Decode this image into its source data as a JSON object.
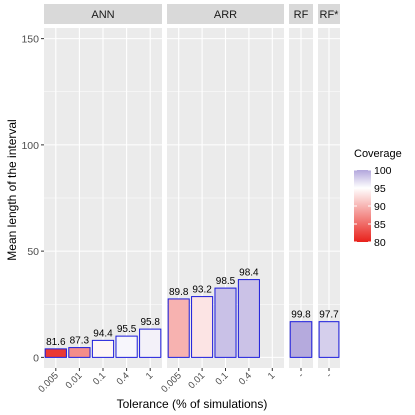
{
  "chart_data": {
    "type": "bar",
    "xlabel": "Tolerance (% of simulations)",
    "ylabel": "Mean length of the interval",
    "ylim": [
      -5,
      155
    ],
    "yticks": [
      0,
      50,
      100,
      150
    ],
    "grid": true,
    "legend": {
      "title": "Coverage",
      "placement": "right",
      "range": [
        80,
        100
      ],
      "ticks": [
        80,
        85,
        90,
        95,
        100
      ],
      "colors": {
        "low": "#e8211b",
        "mid": "#ffffff",
        "high": "#b2a6dc"
      },
      "midpoint": 95
    },
    "panels": [
      {
        "name": "ANN",
        "bars": [
          {
            "tolerance": "0.005",
            "value": 4.0,
            "coverage": 81.6,
            "label": "81.6"
          },
          {
            "tolerance": "0.01",
            "value": 4.6,
            "coverage": 87.3,
            "label": "87.3"
          },
          {
            "tolerance": "0.1",
            "value": 8.0,
            "coverage": 94.4,
            "label": "94.4"
          },
          {
            "tolerance": "0.4",
            "value": 10.0,
            "coverage": 95.5,
            "label": "95.5"
          },
          {
            "tolerance": "1",
            "value": 13.3,
            "coverage": 95.8,
            "label": "95.8"
          }
        ]
      },
      {
        "name": "ARR",
        "bars": [
          {
            "tolerance": "0.005",
            "value": 27.5,
            "coverage": 89.8,
            "label": "89.8"
          },
          {
            "tolerance": "0.01",
            "value": 28.6,
            "coverage": 93.2,
            "label": "93.2"
          },
          {
            "tolerance": "0.1",
            "value": 32.6,
            "coverage": 98.5,
            "label": "98.5"
          },
          {
            "tolerance": "0.4",
            "value": 36.6,
            "coverage": 98.4,
            "label": "98.4"
          },
          {
            "tolerance": "1",
            "value": null,
            "coverage": null,
            "label": ""
          }
        ]
      },
      {
        "name": "RF",
        "bars": [
          {
            "tolerance": "-",
            "value": 16.8,
            "coverage": 99.8,
            "label": "99.8"
          }
        ]
      },
      {
        "name": "RF*",
        "bars": [
          {
            "tolerance": "-",
            "value": 16.8,
            "coverage": 97.7,
            "label": "97.7"
          }
        ]
      }
    ]
  }
}
